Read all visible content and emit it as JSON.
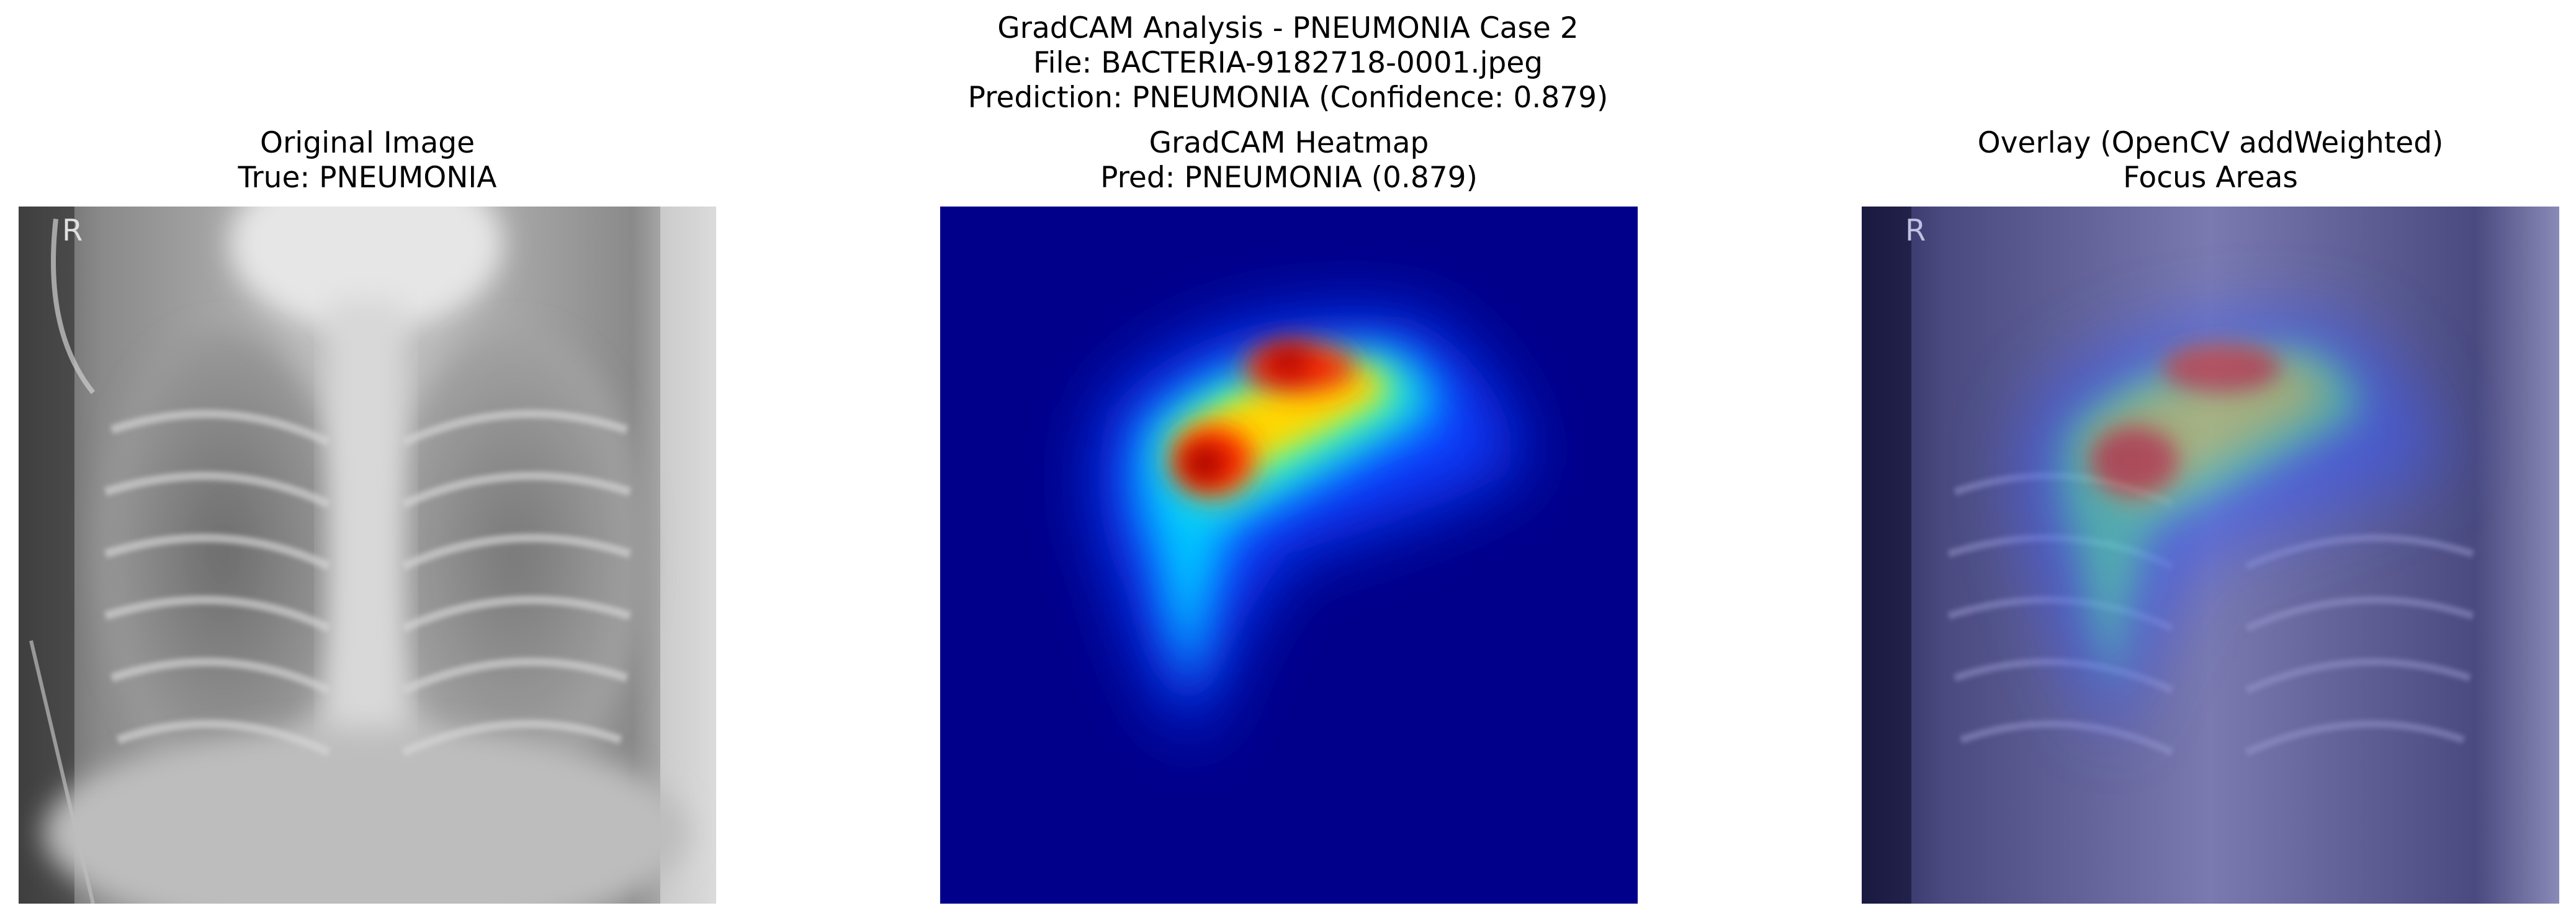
{
  "figure": {
    "title_lines": [
      "GradCAM Analysis - PNEUMONIA Case 2",
      "File: BACTERIA-9182718-0001.jpeg",
      "Prediction: PNEUMONIA (Confidence: 0.879)"
    ]
  },
  "panels": [
    {
      "title_line1": "Original Image",
      "title_line2": "True: PNEUMONIA"
    },
    {
      "title_line1": "GradCAM Heatmap",
      "title_line2": "Pred: PNEUMONIA (0.879)"
    },
    {
      "title_line1": "Overlay (OpenCV addWeighted)",
      "title_line2": "Focus Areas"
    }
  ],
  "xray_marker": "R",
  "colors": {
    "heat_background": "#00008b",
    "overlay_tint": "#1a1a66"
  }
}
